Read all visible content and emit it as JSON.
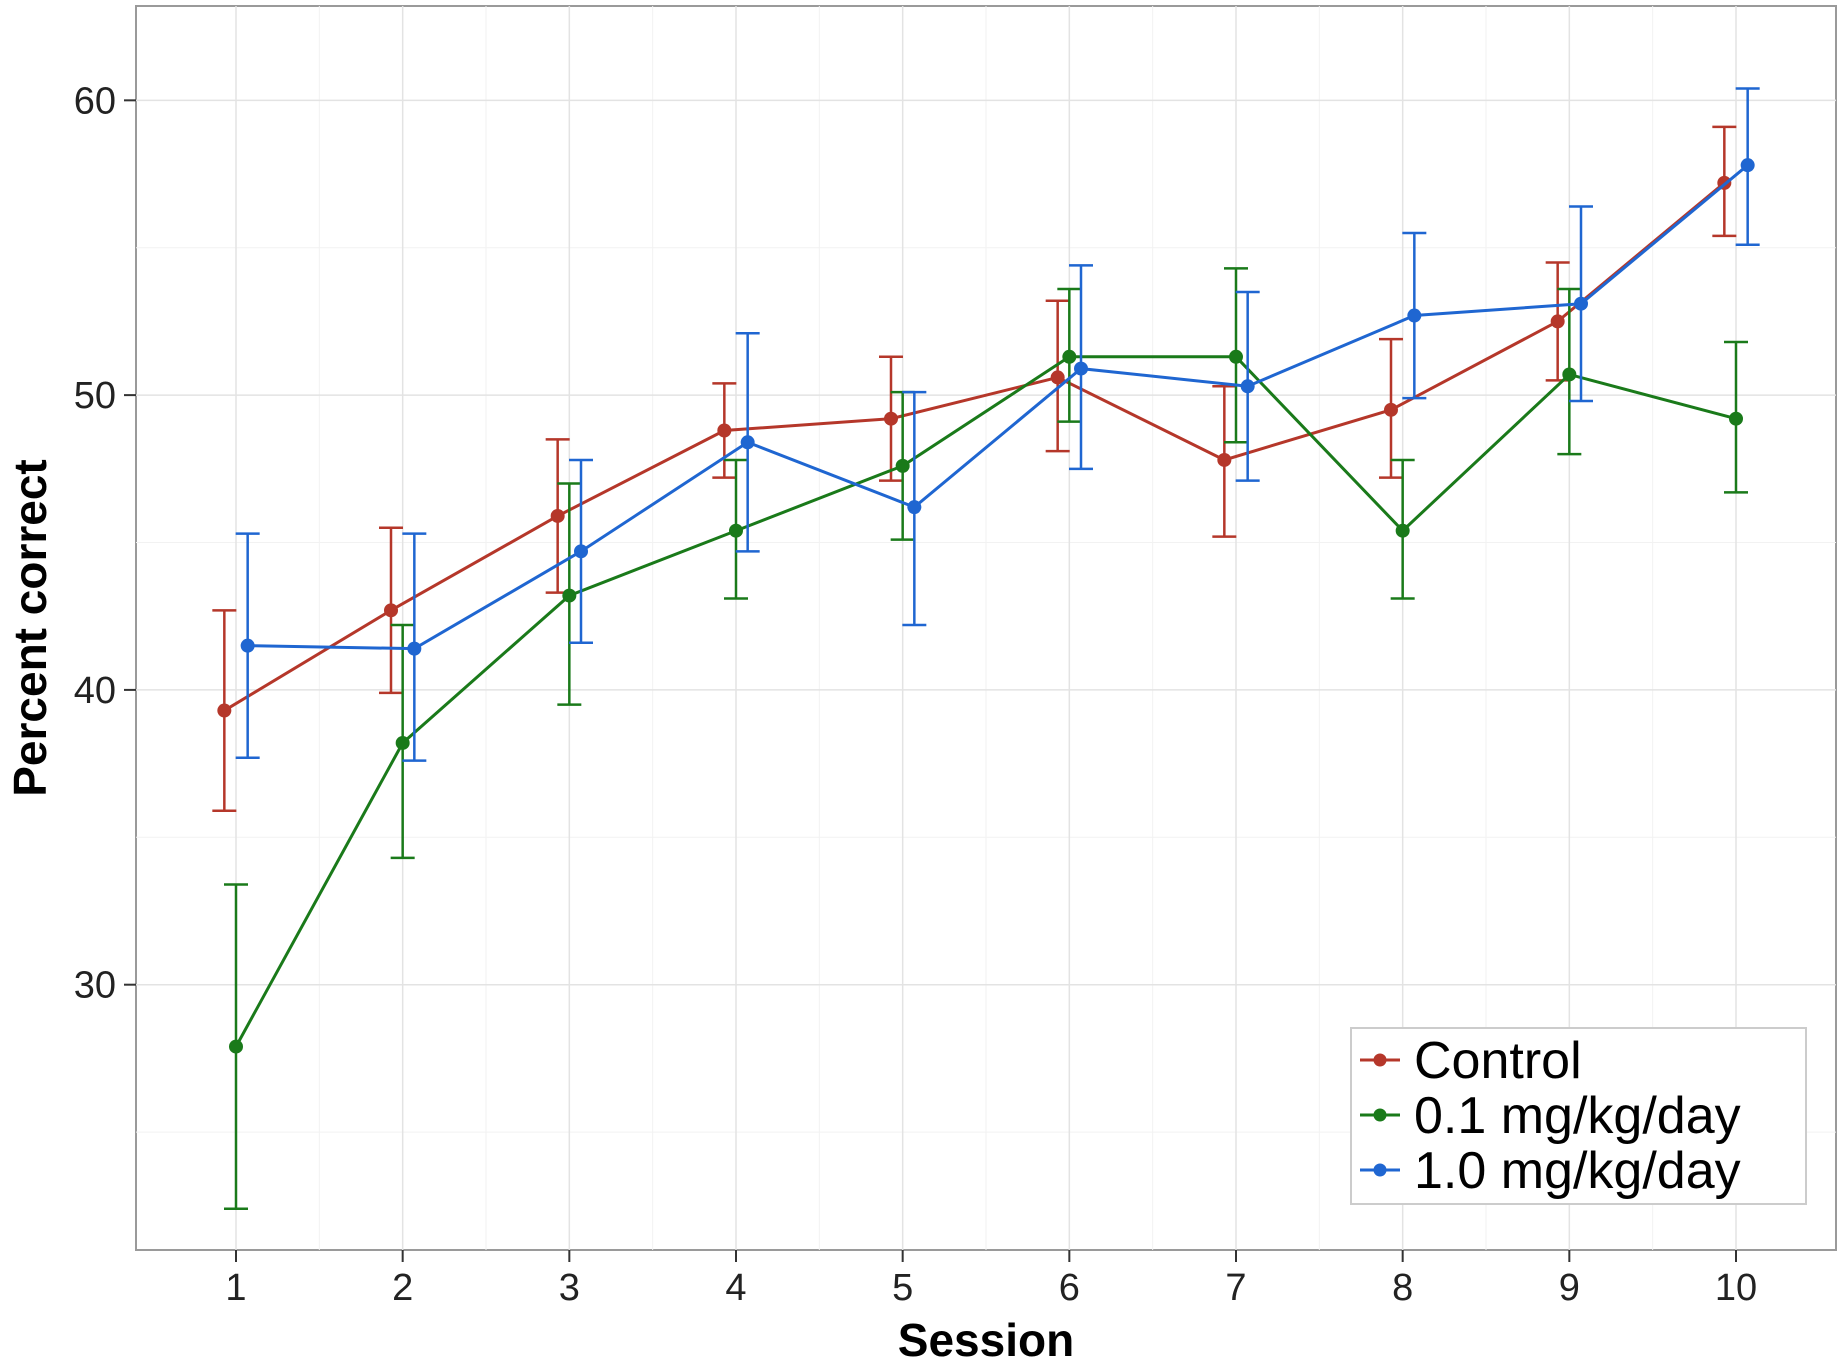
{
  "chart_data": {
    "type": "line",
    "title": "",
    "xlabel": "Session",
    "ylabel": "Percent correct",
    "x": [
      1,
      2,
      3,
      4,
      5,
      6,
      7,
      8,
      9,
      10
    ],
    "x_ticks": [
      "1",
      "2",
      "3",
      "4",
      "5",
      "6",
      "7",
      "8",
      "9",
      "10"
    ],
    "y_ticks": [
      30,
      40,
      50,
      60
    ],
    "xlim": [
      0.4,
      10.6
    ],
    "ylim": [
      21,
      63.2
    ],
    "grid": true,
    "legend_position": "bottom-right",
    "series": [
      {
        "name": "Control",
        "color": "#b5372a",
        "values": [
          39.3,
          42.7,
          45.9,
          48.8,
          49.2,
          50.6,
          47.8,
          49.5,
          52.5,
          57.2
        ],
        "err_low": [
          35.9,
          39.9,
          43.3,
          47.2,
          47.1,
          48.1,
          45.2,
          47.2,
          50.5,
          55.4
        ],
        "err_high": [
          42.7,
          45.5,
          48.5,
          50.4,
          51.3,
          53.2,
          50.3,
          51.9,
          54.5,
          59.1
        ]
      },
      {
        "name": "0.1 mg/kg/day",
        "color": "#1a7a1a",
        "values": [
          27.9,
          38.2,
          43.2,
          45.4,
          47.6,
          51.3,
          51.3,
          45.4,
          50.7,
          49.2
        ],
        "err_low": [
          22.4,
          34.3,
          39.5,
          43.1,
          45.1,
          49.1,
          48.4,
          43.1,
          48.0,
          46.7
        ],
        "err_high": [
          33.4,
          42.2,
          47.0,
          47.8,
          50.1,
          53.6,
          54.3,
          47.8,
          53.6,
          51.8
        ]
      },
      {
        "name": "1.0 mg/kg/day",
        "color": "#1f66d1",
        "values": [
          41.5,
          41.4,
          44.7,
          48.4,
          46.2,
          50.9,
          50.3,
          52.7,
          53.1,
          57.8
        ],
        "err_low": [
          37.7,
          37.6,
          41.6,
          44.7,
          42.2,
          47.5,
          47.1,
          49.9,
          49.8,
          55.1
        ],
        "err_high": [
          45.3,
          45.3,
          47.8,
          52.1,
          50.1,
          54.4,
          53.5,
          55.5,
          56.4,
          60.4
        ]
      }
    ]
  }
}
